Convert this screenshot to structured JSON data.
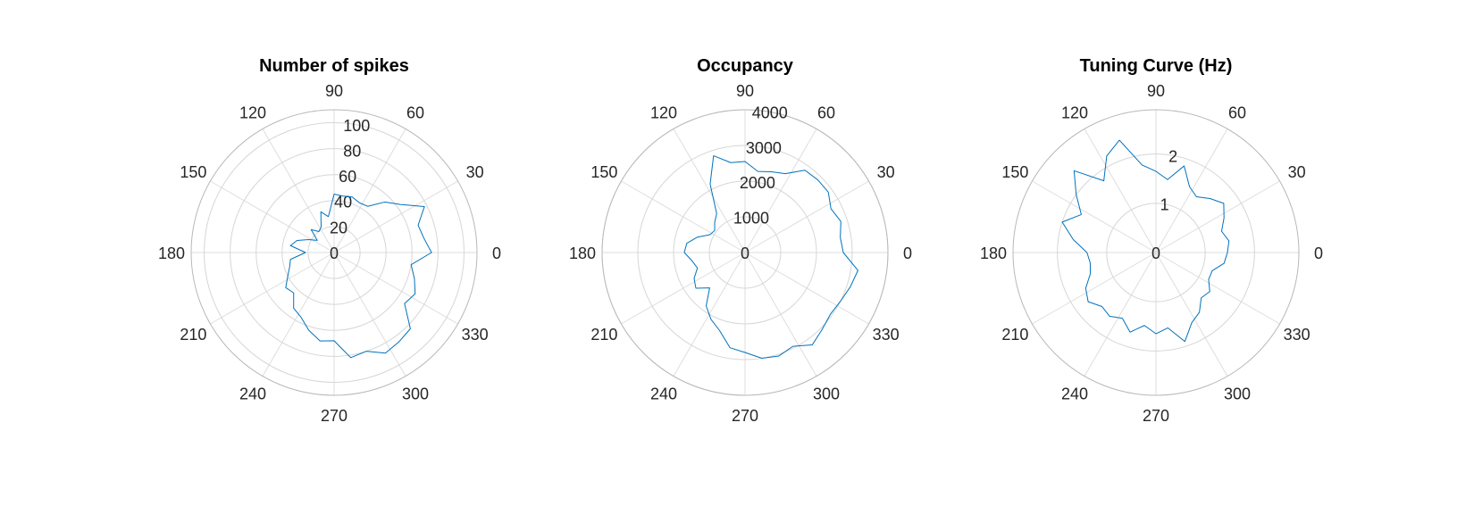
{
  "colors": {
    "series": "#0072BD"
  },
  "angle_labels": [
    "0",
    "30",
    "60",
    "90",
    "120",
    "150",
    "180",
    "210",
    "240",
    "270",
    "300",
    "330"
  ],
  "chart_data": [
    {
      "type": "polar-line",
      "title": "Number of spikes",
      "rlim": [
        0,
        110
      ],
      "rticks": [
        0,
        20,
        40,
        60,
        80,
        100
      ],
      "rtick_labels": [
        "0",
        "20",
        "40",
        "60",
        "80",
        "100"
      ],
      "theta_deg": [
        0,
        9,
        18,
        27,
        36,
        45,
        54,
        63,
        72,
        81,
        90,
        99,
        108,
        117,
        126,
        135,
        144,
        153,
        162,
        171,
        180,
        189,
        198,
        207,
        216,
        225,
        234,
        243,
        252,
        261,
        270,
        279,
        288,
        297,
        306,
        315,
        324,
        333,
        342,
        351
      ],
      "r": [
        75,
        70,
        68,
        78,
        63,
        55,
        44,
        43,
        45,
        44,
        45,
        28,
        33,
        22,
        20,
        25,
        16,
        22,
        30,
        34,
        22,
        34,
        36,
        40,
        46,
        44,
        53,
        56,
        63,
        69,
        68,
        82,
        80,
        87,
        85,
        83,
        67,
        70,
        65,
        60
      ]
    },
    {
      "type": "polar-line",
      "title": "Occupancy",
      "rlim": [
        0,
        4000
      ],
      "rticks": [
        0,
        1000,
        2000,
        3000,
        4000
      ],
      "rtick_labels": [
        "0",
        "1000",
        "2000",
        "3000",
        "4000"
      ],
      "theta_deg": [
        0,
        9,
        18,
        27,
        36,
        45,
        54,
        63,
        72,
        81,
        90,
        99,
        108,
        117,
        126,
        135,
        144,
        153,
        162,
        171,
        180,
        189,
        198,
        207,
        216,
        225,
        234,
        243,
        252,
        261,
        270,
        279,
        288,
        297,
        306,
        315,
        324,
        333,
        342,
        351
      ],
      "r": [
        2750,
        2700,
        2820,
        2700,
        2880,
        2880,
        2850,
        2480,
        2380,
        2300,
        2550,
        2550,
        2850,
        2150,
        1350,
        1200,
        1050,
        1100,
        1400,
        1650,
        1700,
        1500,
        1400,
        1600,
        1700,
        1400,
        1850,
        2100,
        2300,
        2700,
        2800,
        3000,
        3050,
        2950,
        3200,
        3050,
        2950,
        3000,
        3100,
        3200
      ]
    },
    {
      "type": "polar-line",
      "title": "Tuning Curve (Hz)",
      "rlim": [
        0,
        2.9
      ],
      "rticks": [
        0,
        1,
        2
      ],
      "rtick_labels": [
        "0",
        "1",
        "2"
      ],
      "theta_deg": [
        0,
        9,
        18,
        27,
        36,
        45,
        54,
        63,
        72,
        81,
        90,
        99,
        108,
        117,
        126,
        135,
        144,
        153,
        162,
        171,
        180,
        189,
        198,
        207,
        216,
        225,
        234,
        243,
        252,
        261,
        270,
        279,
        288,
        297,
        306,
        315,
        324,
        333,
        342,
        351
      ],
      "r": [
        1.45,
        1.5,
        1.4,
        1.55,
        1.7,
        1.55,
        1.4,
        1.5,
        1.85,
        1.5,
        1.65,
        1.8,
        2.4,
        2.2,
        1.8,
        2.35,
        2.0,
        1.7,
        2.0,
        1.7,
        1.4,
        1.35,
        1.4,
        1.6,
        1.7,
        1.55,
        1.6,
        1.5,
        1.7,
        1.5,
        1.65,
        1.55,
        1.9,
        1.6,
        1.5,
        1.3,
        1.35,
        1.2,
        1.2,
        1.4
      ]
    }
  ]
}
